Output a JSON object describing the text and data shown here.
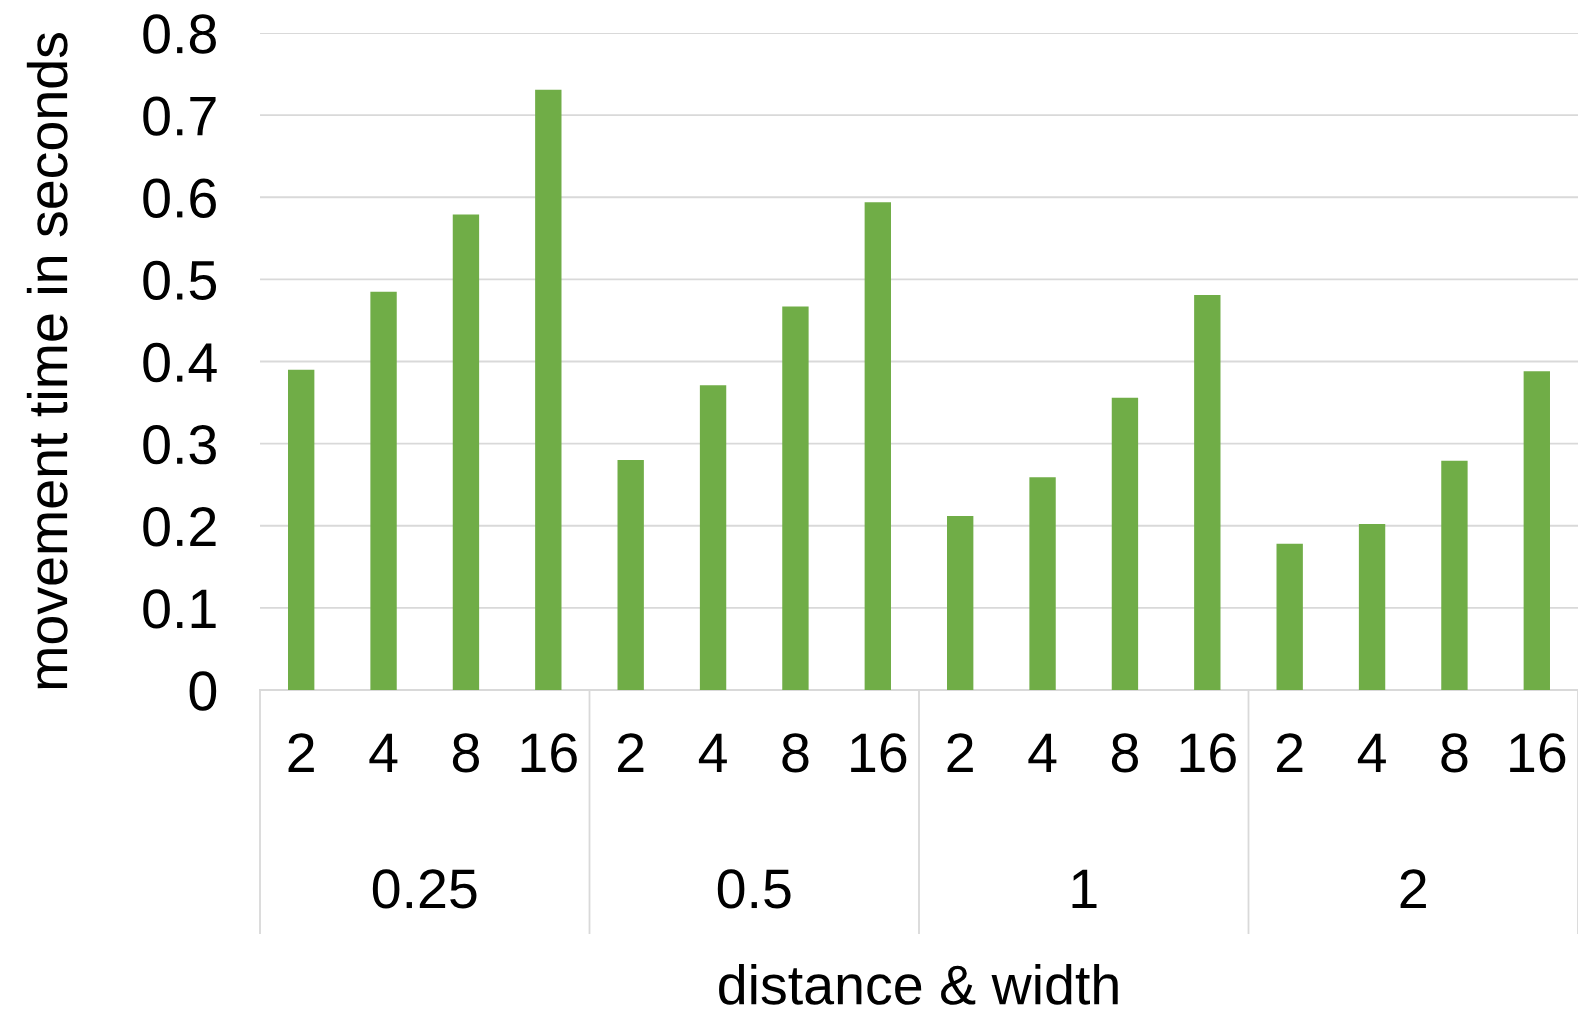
{
  "chart_data": {
    "type": "bar",
    "xlabel": "distance & width",
    "ylabel": "movement time in seconds",
    "categories": [
      "2",
      "4",
      "8",
      "16",
      "2",
      "4",
      "8",
      "16",
      "2",
      "4",
      "8",
      "16",
      "2",
      "4",
      "8",
      "16"
    ],
    "values": [
      0.39,
      0.485,
      0.579,
      0.731,
      0.28,
      0.371,
      0.467,
      0.594,
      0.212,
      0.259,
      0.356,
      0.481,
      0.178,
      0.202,
      0.279,
      0.388
    ],
    "color": "#70ad47",
    "annotations": [
      "0.25",
      "0.5",
      "1",
      "2"
    ],
    "ylim": [
      0,
      0.8
    ],
    "yticks": [
      0,
      0.1,
      0.2,
      0.3,
      0.4,
      0.5,
      0.6,
      0.7,
      0.8
    ],
    "grid": "y",
    "legend": false
  }
}
